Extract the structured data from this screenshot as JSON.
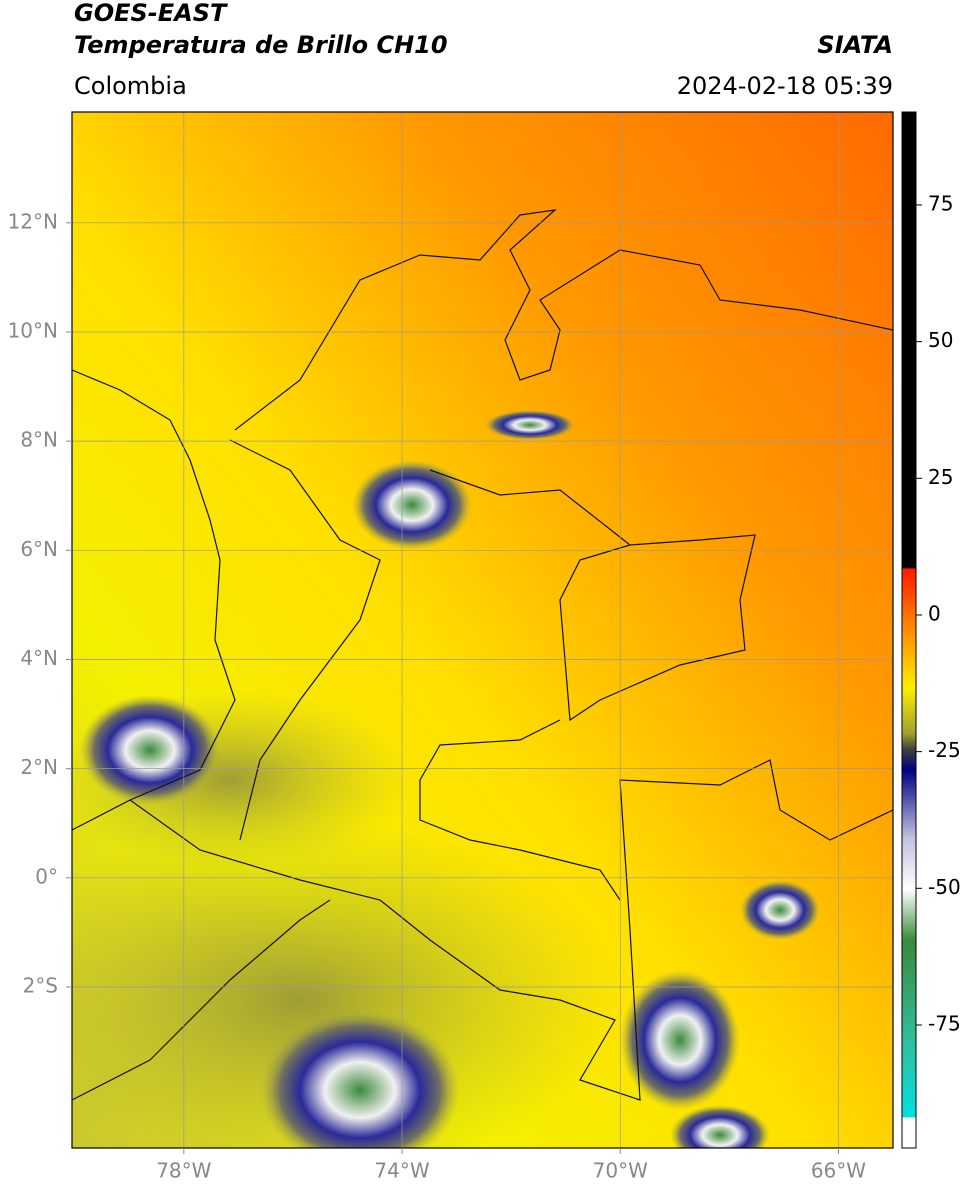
{
  "header": {
    "satellite": "GOES-EAST",
    "product": "Temperatura de Brillo CH10",
    "agency": "SIATA",
    "region": "Colombia",
    "datetime": "2024-02-18 05:39"
  },
  "map": {
    "xlim": [
      -80.05,
      -65.0
    ],
    "ylim": [
      -4.95,
      14.03
    ],
    "xticks": [
      {
        "value": -78,
        "label": "78°W"
      },
      {
        "value": -74,
        "label": "74°W"
      },
      {
        "value": -70,
        "label": "70°W"
      },
      {
        "value": -66,
        "label": "66°W"
      }
    ],
    "yticks": [
      {
        "value": 12,
        "label": "12°N"
      },
      {
        "value": 10,
        "label": "10°N"
      },
      {
        "value": 8,
        "label": "8°N"
      },
      {
        "value": 6,
        "label": "6°N"
      },
      {
        "value": 4,
        "label": "4°N"
      },
      {
        "value": 2,
        "label": "2°N"
      },
      {
        "value": 0,
        "label": "0°"
      },
      {
        "value": -2,
        "label": "2°S"
      }
    ],
    "grid": true
  },
  "colorbar": {
    "lim": [
      -97.5,
      92
    ],
    "ticks": [
      75,
      50,
      25,
      0,
      -25,
      -50,
      -75
    ]
  }
}
